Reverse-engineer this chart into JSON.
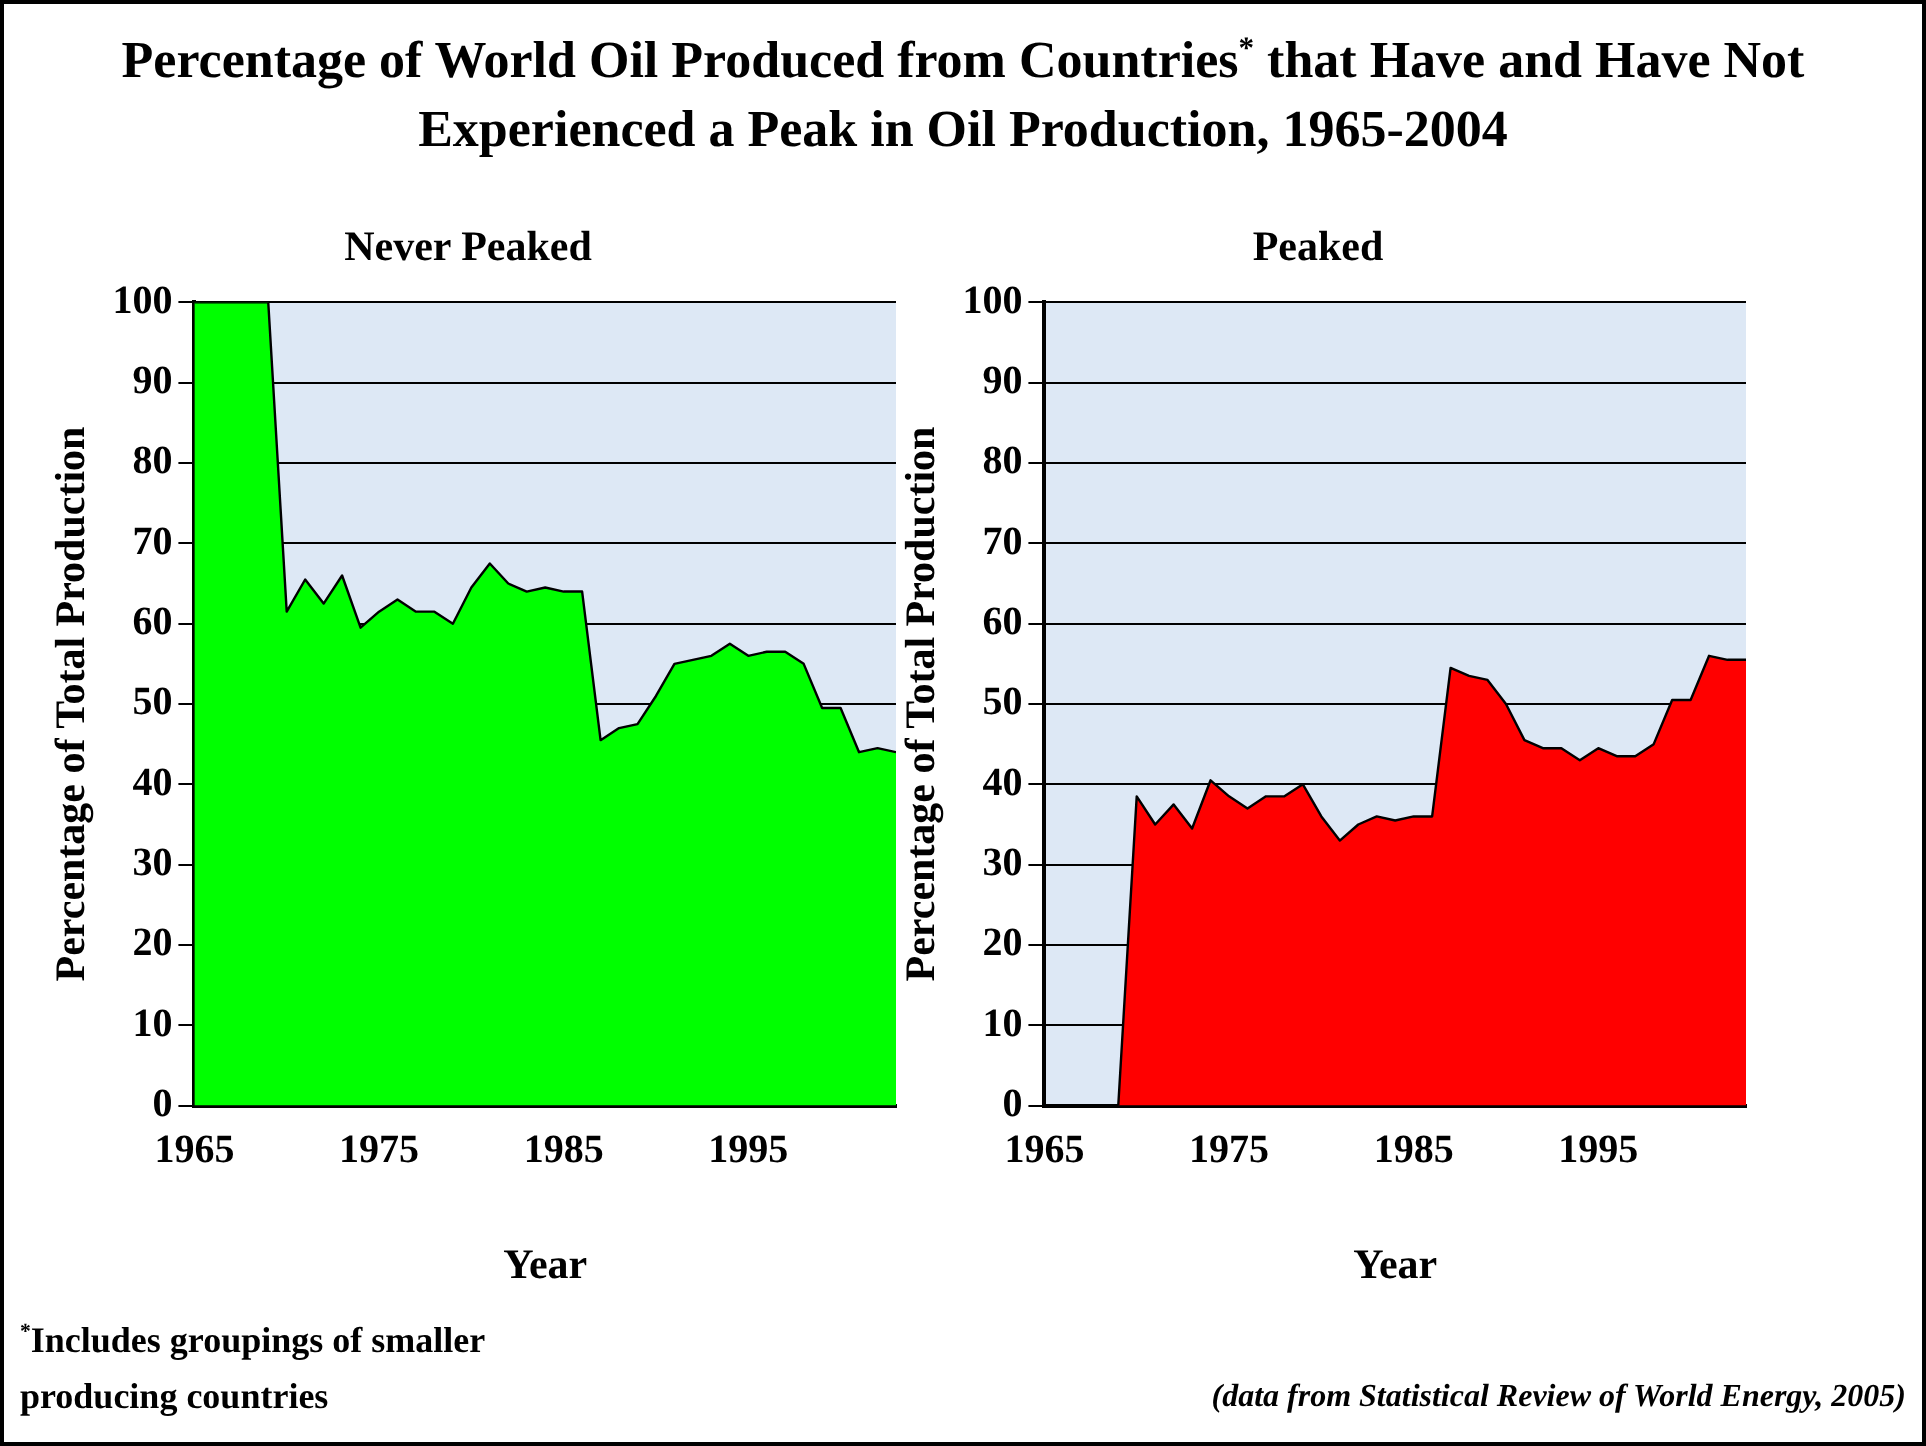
{
  "chart_data": [
    {
      "type": "area",
      "title": "Percentage of World Oil Produced from Countries$^{*}$ that Have and Have Not Experienced a Peak in Oil Production, 1965-2004",
      "subtitle": "Never Peaked",
      "xlabel": "Year",
      "ylabel": "Percentage of Total Production",
      "x": [
        1965,
        1966,
        1967,
        1968,
        1969,
        1970,
        1971,
        1972,
        1973,
        1974,
        1975,
        1976,
        1977,
        1978,
        1979,
        1980,
        1981,
        1982,
        1983,
        1984,
        1985,
        1986,
        1987,
        1988,
        1989,
        1990,
        1991,
        1992,
        1993,
        1994,
        1995,
        1996,
        1997,
        1998,
        1999,
        2000,
        2001,
        2002,
        2003
      ],
      "series": [
        {
          "color": "#00ff00",
          "values": [
            100,
            100,
            100,
            100,
            100,
            61.5,
            65.5,
            62.5,
            66,
            59.5,
            61.5,
            63,
            61.5,
            61.5,
            60,
            64.5,
            67.5,
            65,
            64,
            64.5,
            64,
            64,
            45.5,
            47,
            47.5,
            51,
            55,
            55.5,
            56,
            57.5,
            56,
            56.5,
            56.5,
            55,
            49.5,
            49.5,
            44,
            44.5,
            44
          ]
        }
      ],
      "xlim": [
        1965,
        2003
      ],
      "xticks": [
        1965,
        1975,
        1985,
        1995
      ],
      "ylim": [
        0,
        100
      ],
      "yticks": [
        0,
        10,
        20,
        30,
        40,
        50,
        60,
        70,
        80,
        90,
        100
      ],
      "grid": "y",
      "annotations": [
        "$^{*}$Includes groupings of smaller producing countries"
      ]
    },
    {
      "type": "area",
      "subtitle": "Peaked",
      "xlabel": "Year",
      "ylabel": "Percentage of Total Production",
      "x": [
        1965,
        1966,
        1967,
        1968,
        1969,
        1970,
        1971,
        1972,
        1973,
        1974,
        1975,
        1976,
        1977,
        1978,
        1979,
        1980,
        1981,
        1982,
        1983,
        1984,
        1985,
        1986,
        1987,
        1988,
        1989,
        1990,
        1991,
        1992,
        1993,
        1994,
        1995,
        1996,
        1997,
        1998,
        1999,
        2000,
        2001,
        2002,
        2003
      ],
      "series": [
        {
          "color": "#ff0000",
          "values": [
            0,
            0,
            0,
            0,
            0,
            38.5,
            35,
            37.5,
            34.5,
            40.5,
            38.5,
            37,
            38.5,
            38.5,
            40,
            36,
            33,
            35,
            36,
            35.5,
            36,
            36,
            54.5,
            53.5,
            53,
            50,
            45.5,
            44.5,
            44.5,
            43,
            44.5,
            43.5,
            43.5,
            45,
            50.5,
            50.5,
            56,
            55.5,
            55.5
          ]
        }
      ],
      "xlim": [
        1965,
        2003
      ],
      "xticks": [
        1965,
        1975,
        1985,
        1995
      ],
      "ylim": [
        0,
        100
      ],
      "yticks": [
        0,
        10,
        20,
        30,
        40,
        50,
        60,
        70,
        80,
        90,
        100
      ],
      "grid": "y",
      "annotations": [
        "(data from Statistical Review of World Energy, 2005)"
      ]
    }
  ]
}
